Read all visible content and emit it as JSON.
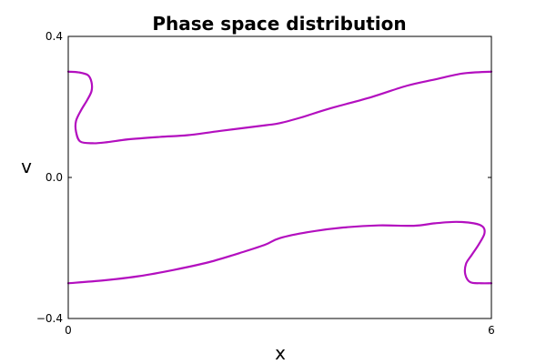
{
  "chart_data": {
    "type": "line",
    "title": "Phase space distribution",
    "xlabel": "x",
    "ylabel": "v",
    "xlim": [
      0,
      6
    ],
    "ylim": [
      -0.4,
      0.4
    ],
    "grid": false,
    "x_ticks": [
      {
        "value": 0,
        "label": "0"
      },
      {
        "value": 6,
        "label": "6"
      }
    ],
    "y_ticks": [
      {
        "value": 0.4,
        "label": "0.4"
      },
      {
        "value": 0.0,
        "label": "0.0"
      },
      {
        "value": -0.4,
        "label": "−0.4"
      }
    ],
    "colors": {
      "series": "#b30fbf"
    },
    "series": [
      {
        "points": [
          [
            0.0,
            0.3
          ],
          [
            0.15,
            0.298
          ],
          [
            0.28,
            0.29
          ],
          [
            0.33,
            0.27
          ],
          [
            0.33,
            0.245
          ],
          [
            0.27,
            0.22
          ],
          [
            0.18,
            0.19
          ],
          [
            0.11,
            0.16
          ],
          [
            0.11,
            0.13
          ],
          [
            0.17,
            0.102
          ],
          [
            0.35,
            0.097
          ],
          [
            0.55,
            0.1
          ],
          [
            0.85,
            0.108
          ],
          [
            1.3,
            0.115
          ],
          [
            1.7,
            0.12
          ],
          [
            2.2,
            0.133
          ],
          [
            2.8,
            0.148
          ],
          [
            3.0,
            0.154
          ],
          [
            3.3,
            0.17
          ],
          [
            3.7,
            0.195
          ],
          [
            4.3,
            0.228
          ],
          [
            4.8,
            0.26
          ],
          [
            5.2,
            0.278
          ],
          [
            5.6,
            0.295
          ],
          [
            6.0,
            0.3
          ]
        ]
      },
      {
        "points": [
          [
            0.0,
            -0.3
          ],
          [
            0.5,
            -0.292
          ],
          [
            1.0,
            -0.28
          ],
          [
            1.5,
            -0.262
          ],
          [
            2.0,
            -0.24
          ],
          [
            2.5,
            -0.21
          ],
          [
            2.8,
            -0.19
          ],
          [
            3.0,
            -0.172
          ],
          [
            3.4,
            -0.155
          ],
          [
            3.9,
            -0.142
          ],
          [
            4.4,
            -0.136
          ],
          [
            4.9,
            -0.137
          ],
          [
            5.2,
            -0.13
          ],
          [
            5.5,
            -0.126
          ],
          [
            5.75,
            -0.13
          ],
          [
            5.88,
            -0.14
          ],
          [
            5.9,
            -0.16
          ],
          [
            5.82,
            -0.19
          ],
          [
            5.72,
            -0.22
          ],
          [
            5.64,
            -0.245
          ],
          [
            5.63,
            -0.275
          ],
          [
            5.7,
            -0.297
          ],
          [
            5.85,
            -0.3
          ],
          [
            6.0,
            -0.3
          ]
        ]
      }
    ]
  }
}
